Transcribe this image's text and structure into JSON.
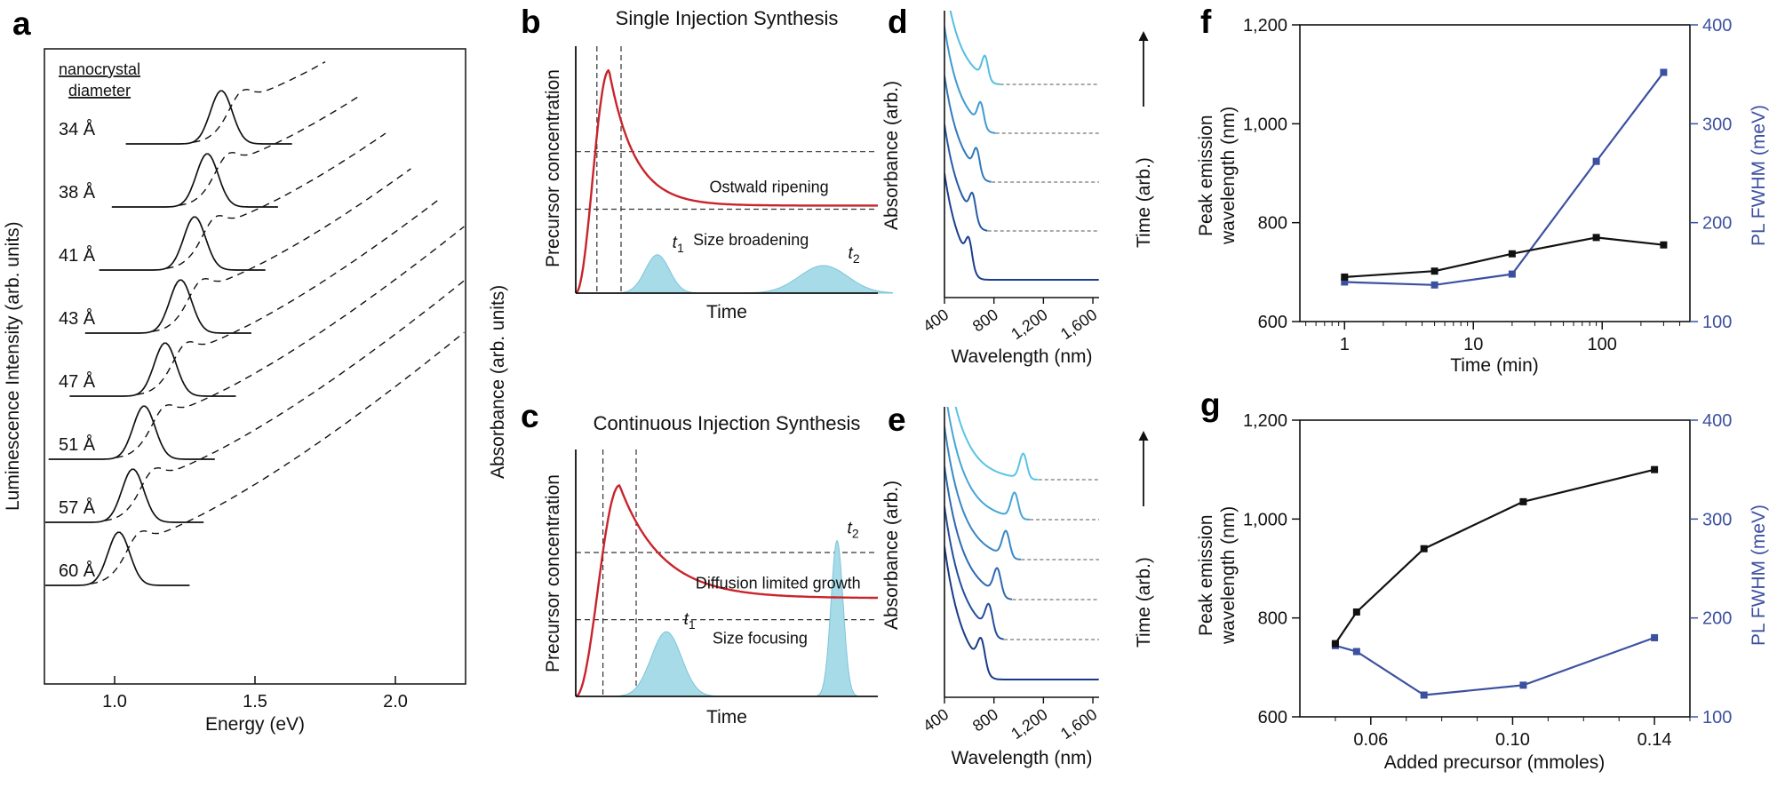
{
  "colors": {
    "red": "#c8242b",
    "dist_fill": "#a7dbe8",
    "dist_stroke": "#7cc5d9",
    "blue": "#3c50a0",
    "black": "#111111"
  },
  "chart_data": [
    {
      "id": "a",
      "panel": "a",
      "type": "line",
      "xlabel": "Energy (eV)",
      "ylabel": "Luminescence Intensity (arb. units)",
      "ylabel_right": "Absorbance (arb. units)",
      "annotation_lines": [
        "nanocrystal",
        "diameter"
      ],
      "xlim": [
        0.75,
        2.25
      ],
      "xticks": [
        "1.0",
        "1.5",
        "2.0"
      ],
      "xtick_values": [
        1.0,
        1.5,
        2.0
      ],
      "styles": {
        "emission": "solid",
        "absorbance": "dashed"
      },
      "series": [
        {
          "label": "34 Å",
          "peak_eV": 1.38,
          "dash_to_eV": 1.76
        },
        {
          "label": "38 Å",
          "peak_eV": 1.33,
          "dash_to_eV": 1.88
        },
        {
          "label": "41 Å",
          "peak_eV": 1.285,
          "dash_to_eV": 1.97
        },
        {
          "label": "43 Å",
          "peak_eV": 1.235,
          "dash_to_eV": 2.06
        },
        {
          "label": "47 Å",
          "peak_eV": 1.18,
          "dash_to_eV": 2.16
        },
        {
          "label": "51 Å",
          "peak_eV": 1.105,
          "dash_to_eV": 2.25
        },
        {
          "label": "57 Å",
          "peak_eV": 1.065,
          "dash_to_eV": 2.25
        },
        {
          "label": "60 Å",
          "peak_eV": 1.015,
          "dash_to_eV": 2.25
        }
      ]
    },
    {
      "id": "b",
      "panel": "b",
      "type": "line",
      "title": "Single Injection Synthesis",
      "xlabel": "Time",
      "ylabel": "Precursor concentration",
      "curve": {
        "peak_t": 0.11,
        "peak_c": 0.93,
        "plateau": 0.365,
        "decay": 0.085
      },
      "hlines": [
        0.59,
        0.35
      ],
      "vlines": [
        0.07,
        0.15
      ],
      "regions": [
        {
          "label": "Ostwald ripening",
          "x": 0.64,
          "y": 0.42
        },
        {
          "label": "Size broadening",
          "x": 0.58,
          "y": 0.2
        }
      ],
      "distributions": [
        {
          "label": "t",
          "sub": "1",
          "center": 0.27,
          "sigma": 0.04,
          "height": 0.16
        },
        {
          "label": "t",
          "sub": "2",
          "center": 0.82,
          "sigma": 0.08,
          "height": 0.115
        }
      ]
    },
    {
      "id": "c",
      "panel": "c",
      "type": "line",
      "title": "Continuous Injection Synthesis",
      "xlabel": "Time",
      "ylabel": "Precursor concentration",
      "curve": {
        "peak_t": 0.145,
        "peak_c": 0.88,
        "plateau": 0.41,
        "decay": 0.14
      },
      "hlines": [
        0.6,
        0.32
      ],
      "vlines": [
        0.09,
        0.2
      ],
      "regions": [
        {
          "label": "Diffusion limited growth",
          "x": 0.67,
          "y": 0.45
        },
        {
          "label": "Size focusing",
          "x": 0.61,
          "y": 0.22
        }
      ],
      "distributions": [
        {
          "label": "t",
          "sub": "1",
          "center": 0.3,
          "sigma": 0.05,
          "height": 0.27
        },
        {
          "label": "t",
          "sub": "2",
          "center": 0.865,
          "sigma": 0.02,
          "height": 0.65
        }
      ]
    },
    {
      "id": "d",
      "panel": "d",
      "type": "line",
      "xlabel": "Wavelength (nm)",
      "ylabel": "Absorbance (arb.)",
      "right_label": "Time (arb.)",
      "xlim": [
        400,
        1650
      ],
      "xticks": [
        "400",
        "800",
        "1,200",
        "1,600"
      ],
      "xtick_values": [
        400,
        800,
        1200,
        1600
      ],
      "series": [
        {
          "peak_nm": 730,
          "color": "#54bde2"
        },
        {
          "peak_nm": 695,
          "color": "#3f9ad0"
        },
        {
          "peak_nm": 662,
          "color": "#2f7abc"
        },
        {
          "peak_nm": 630,
          "color": "#255ba6"
        },
        {
          "peak_nm": 600,
          "color": "#1b3f8f"
        }
      ]
    },
    {
      "id": "e",
      "panel": "e",
      "type": "line",
      "xlabel": "Wavelength (nm)",
      "ylabel": "Absorbance (arb.)",
      "right_label": "Time (arb.)",
      "xlim": [
        400,
        1650
      ],
      "xticks": [
        "400",
        "800",
        "1,200",
        "1,600"
      ],
      "xtick_values": [
        400,
        800,
        1200,
        1600
      ],
      "series": [
        {
          "peak_nm": 1040,
          "color": "#5ac3e6"
        },
        {
          "peak_nm": 970,
          "color": "#47a5d6"
        },
        {
          "peak_nm": 900,
          "color": "#3887c6"
        },
        {
          "peak_nm": 830,
          "color": "#2c69b1"
        },
        {
          "peak_nm": 762,
          "color": "#224e9c"
        },
        {
          "peak_nm": 700,
          "color": "#183a88"
        }
      ]
    },
    {
      "id": "f",
      "panel": "f",
      "type": "scatter",
      "xlabel": "Time (min)",
      "ylabel": "Peak emission wavelength (nm)",
      "ylabel_right": "PL FWHM (meV)",
      "xscale": "log",
      "xlim": [
        0.45,
        480
      ],
      "xticks": [
        "1",
        "10",
        "100"
      ],
      "xtick_values": [
        1,
        10,
        100
      ],
      "xminor": [
        0.5,
        0.6,
        0.7,
        0.8,
        0.9,
        2,
        3,
        4,
        5,
        6,
        7,
        8,
        9,
        20,
        30,
        40,
        50,
        60,
        70,
        80,
        90,
        200,
        300,
        400
      ],
      "ylim_left": [
        600,
        1200
      ],
      "yticks_left": [
        "600",
        "800",
        "1,000",
        "1,200"
      ],
      "ytick_values_left": [
        600,
        800,
        1000,
        1200
      ],
      "ylim_right": [
        100,
        400
      ],
      "yticks_right": [
        "100",
        "200",
        "300",
        "400"
      ],
      "ytick_values_right": [
        100,
        200,
        300,
        400
      ],
      "series": [
        {
          "name": "PL FWHM",
          "axis": "right",
          "color": "#3c50a0",
          "x": [
            1,
            5,
            20,
            90,
            300
          ],
          "y": [
            140,
            137,
            148,
            262,
            352
          ]
        },
        {
          "name": "Peak emission wavelength",
          "axis": "left",
          "color": "#111111",
          "x": [
            1,
            5,
            20,
            90,
            300
          ],
          "y": [
            690,
            702,
            737,
            770,
            755
          ]
        }
      ]
    },
    {
      "id": "g",
      "panel": "g",
      "type": "scatter",
      "xlabel": "Added precursor (mmoles)",
      "ylabel": "Peak emission wavelength (nm)",
      "ylabel_right": "PL FWHM (meV)",
      "xscale": "linear",
      "xlim": [
        0.04,
        0.15
      ],
      "xticks": [
        "0.06",
        "0.10",
        "0.14"
      ],
      "xtick_values": [
        0.06,
        0.1,
        0.14
      ],
      "xminor": [
        0.05,
        0.07,
        0.08,
        0.09,
        0.11,
        0.12,
        0.13,
        0.15
      ],
      "ylim_left": [
        600,
        1200
      ],
      "yticks_left": [
        "600",
        "800",
        "1,000",
        "1,200"
      ],
      "ytick_values_left": [
        600,
        800,
        1000,
        1200
      ],
      "ylim_right": [
        100,
        400
      ],
      "yticks_right": [
        "100",
        "200",
        "300",
        "400"
      ],
      "ytick_values_right": [
        100,
        200,
        300,
        400
      ],
      "series": [
        {
          "name": "PL FWHM",
          "axis": "right",
          "color": "#3c50a0",
          "x": [
            0.05,
            0.056,
            0.075,
            0.103,
            0.14
          ],
          "y": [
            172,
            166,
            122,
            132,
            180
          ]
        },
        {
          "name": "Peak emission wavelength",
          "axis": "left",
          "color": "#111111",
          "x": [
            0.05,
            0.056,
            0.075,
            0.103,
            0.14
          ],
          "y": [
            748,
            812,
            940,
            1035,
            1100
          ]
        }
      ]
    }
  ]
}
